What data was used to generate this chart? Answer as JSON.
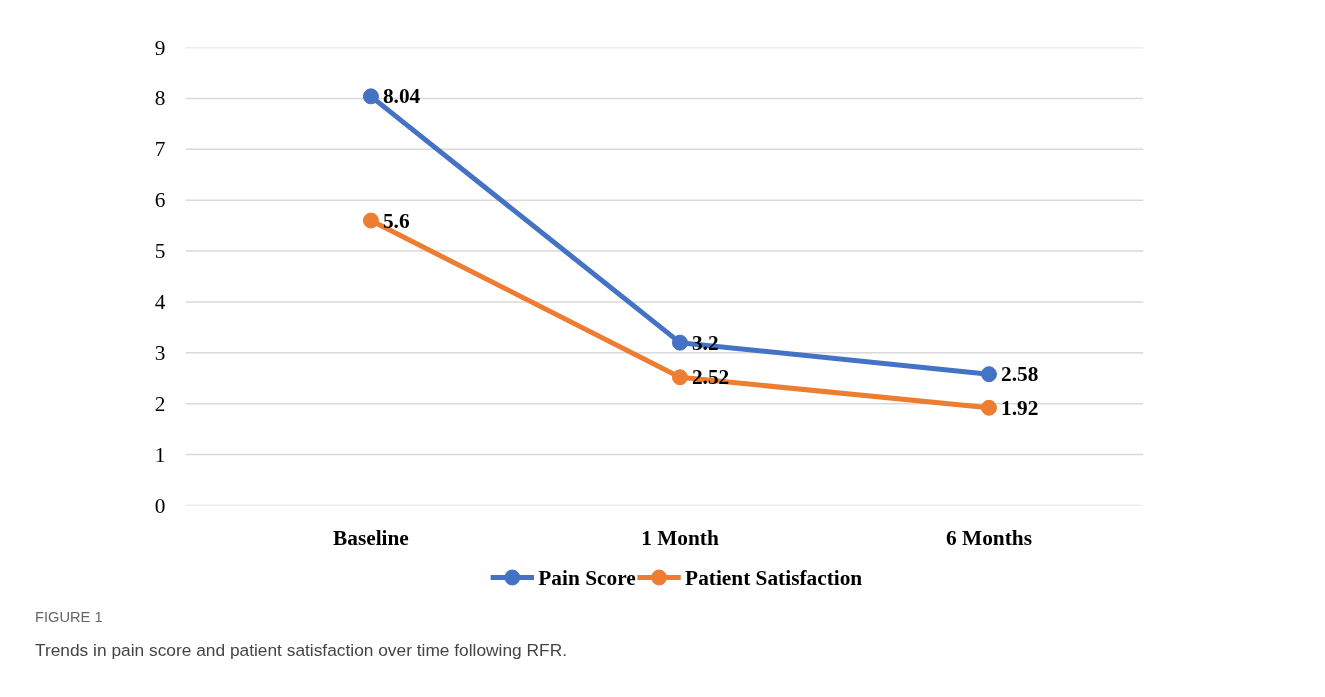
{
  "chart_data": {
    "type": "line",
    "categories": [
      "Baseline",
      "1 Month",
      "6 Months"
    ],
    "series": [
      {
        "name": "Pain Score",
        "color": "#4472c4",
        "values": [
          8.04,
          3.2,
          2.58
        ]
      },
      {
        "name": "Patient Satisfaction",
        "color": "#ed7d31",
        "values": [
          5.6,
          2.52,
          1.92
        ]
      }
    ],
    "ylim": [
      0,
      9
    ],
    "yticks": [
      0,
      1,
      2,
      3,
      4,
      5,
      6,
      7,
      8,
      9
    ],
    "grid": "y",
    "legend": "bottom",
    "marker": "circle",
    "line_style": "solid",
    "data_labels": true,
    "annotations": [
      "FIGURE 1",
      "Trends in pain score and patient satisfaction over time following RFR."
    ]
  }
}
